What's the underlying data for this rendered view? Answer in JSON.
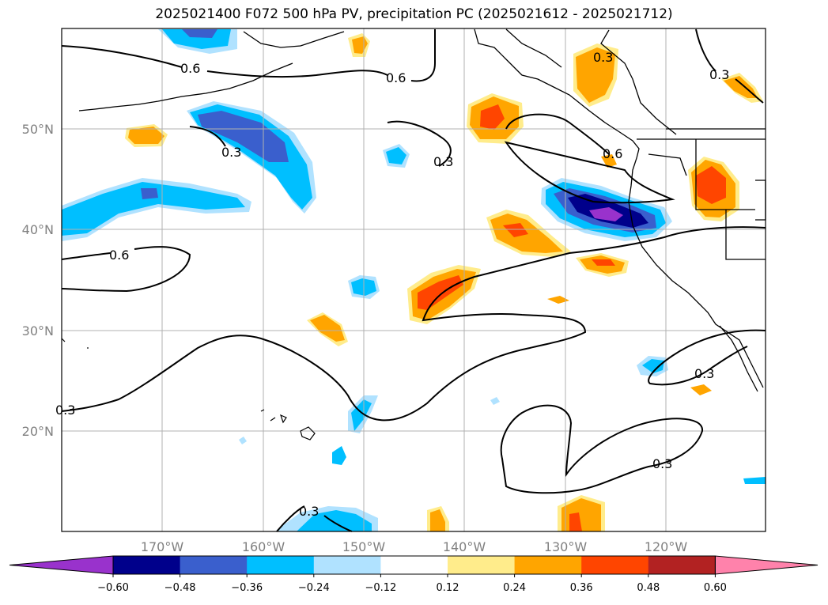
{
  "title": "2025021400 F072 500 hPa PV, precipitation PC (2025021612 - 2025021712)",
  "map": {
    "lon_range": [
      -180,
      -110
    ],
    "lat_range": [
      10,
      60
    ],
    "lat_labels": [
      "50°N",
      "40°N",
      "30°N",
      "20°N"
    ],
    "lon_labels": [
      "170°W",
      "160°W",
      "150°W",
      "140°W",
      "130°W",
      "120°W"
    ],
    "contour_labels": [
      "0.6",
      "0.6",
      "0.3",
      "0.3",
      "0.6",
      "0.6",
      "0.3",
      "0.3",
      "0.3",
      "0.3",
      "0.3",
      "0.3"
    ]
  },
  "colorbar": {
    "ticks": [
      "−0.60",
      "−0.48",
      "−0.36",
      "−0.24",
      "−0.12",
      "0.12",
      "0.24",
      "0.36",
      "0.48",
      "0.60"
    ],
    "colors": [
      "#9932cc",
      "#00008b",
      "#3a5fcd",
      "#00bfff",
      "#b0e2ff",
      "#ffffff",
      "#ffec8b",
      "#ffa500",
      "#ff4500",
      "#b22222",
      "#ff82ab"
    ]
  }
}
